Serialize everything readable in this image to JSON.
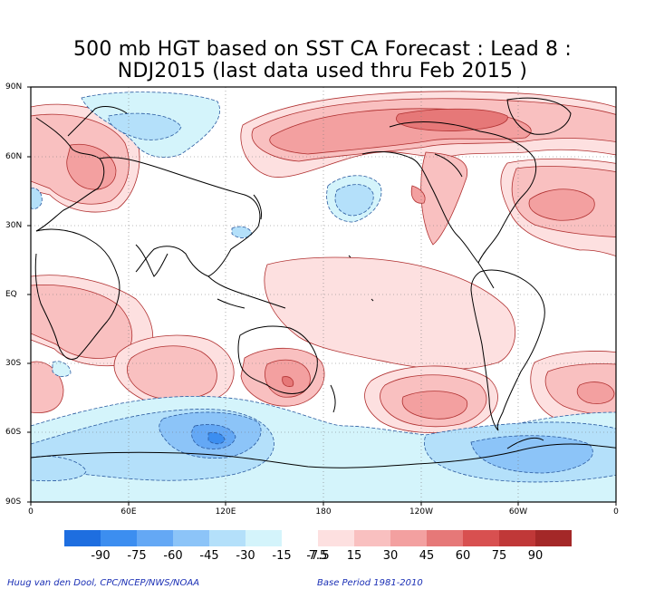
{
  "title": {
    "line1": "500 mb HGT based on SST CA Forecast : Lead 8 :",
    "line2": "NDJ2015 (last data used thru Feb 2015 )"
  },
  "axes": {
    "lat_labels": [
      "90N",
      "60N",
      "30N",
      "EQ",
      "30S",
      "60S",
      "90S"
    ],
    "lon_labels": [
      "0",
      "60E",
      "120E",
      "180",
      "120W",
      "60W",
      "0"
    ]
  },
  "legend": {
    "labels": [
      "-90",
      "-75",
      "-60",
      "-45",
      "-30",
      "-15",
      "-7.5",
      "7.5",
      "15",
      "30",
      "45",
      "60",
      "75",
      "90"
    ],
    "colors": [
      "#1e6ee0",
      "#3c8ef0",
      "#64a8f5",
      "#8cc4f8",
      "#b4e0fa",
      "#d4f4fb",
      "#ffffff",
      "#fde0e0",
      "#f9c0c0",
      "#f3a0a0",
      "#e67878",
      "#d85050",
      "#c03838",
      "#a42828"
    ]
  },
  "credits": {
    "left": "Huug van den Dool, CPC/NCEP/NWS/NOAA",
    "right": "Base Period 1981-2010"
  }
}
